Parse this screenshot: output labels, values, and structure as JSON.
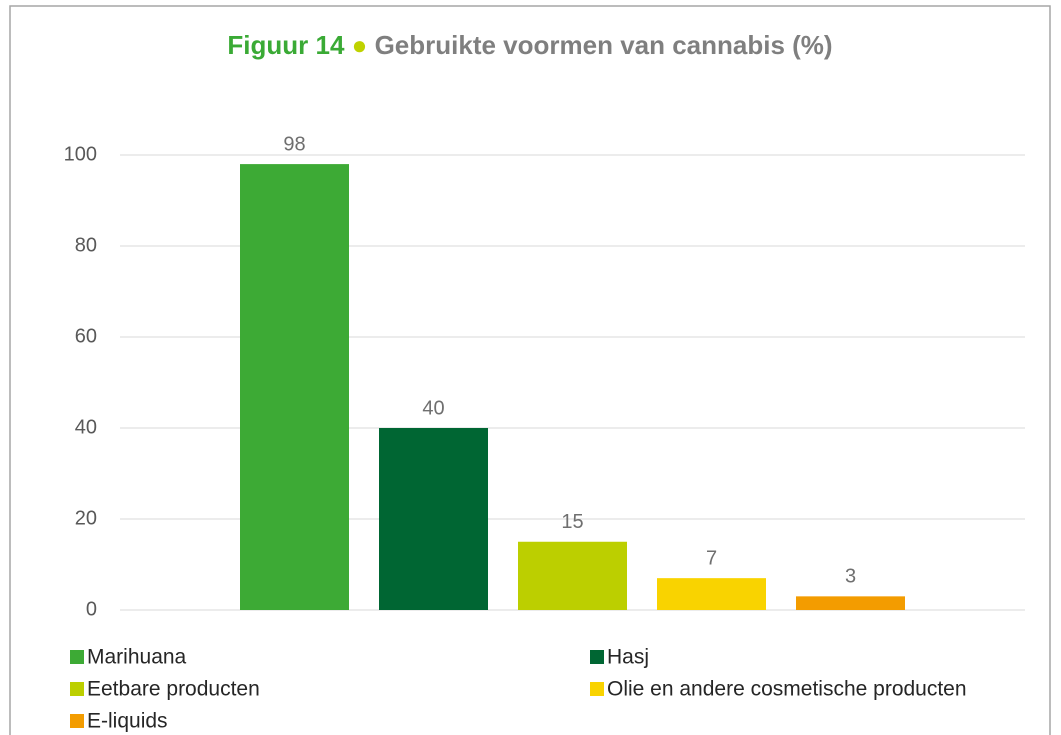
{
  "chart_data": {
    "type": "bar",
    "figure_label": "Figuur 14",
    "title": "Gebruikte voormen van cannabis (%)",
    "categories": [
      null
    ],
    "series": [
      {
        "name": "Marihuana",
        "color": "#3daa35",
        "values": [
          98
        ]
      },
      {
        "name": "Hasj",
        "color": "#006633",
        "values": [
          40
        ]
      },
      {
        "name": "Eetbare producten",
        "color": "#bccf00",
        "values": [
          15
        ]
      },
      {
        "name": "Olie en andere cosmetische producten",
        "color": "#f9d300",
        "values": [
          7
        ]
      },
      {
        "name": "E-liquids",
        "color": "#f39c00",
        "values": [
          3
        ]
      }
    ],
    "ylim": [
      0,
      100
    ],
    "yticks": [
      0,
      20,
      40,
      60,
      80,
      100
    ],
    "grid": true,
    "legend": "bottom"
  }
}
